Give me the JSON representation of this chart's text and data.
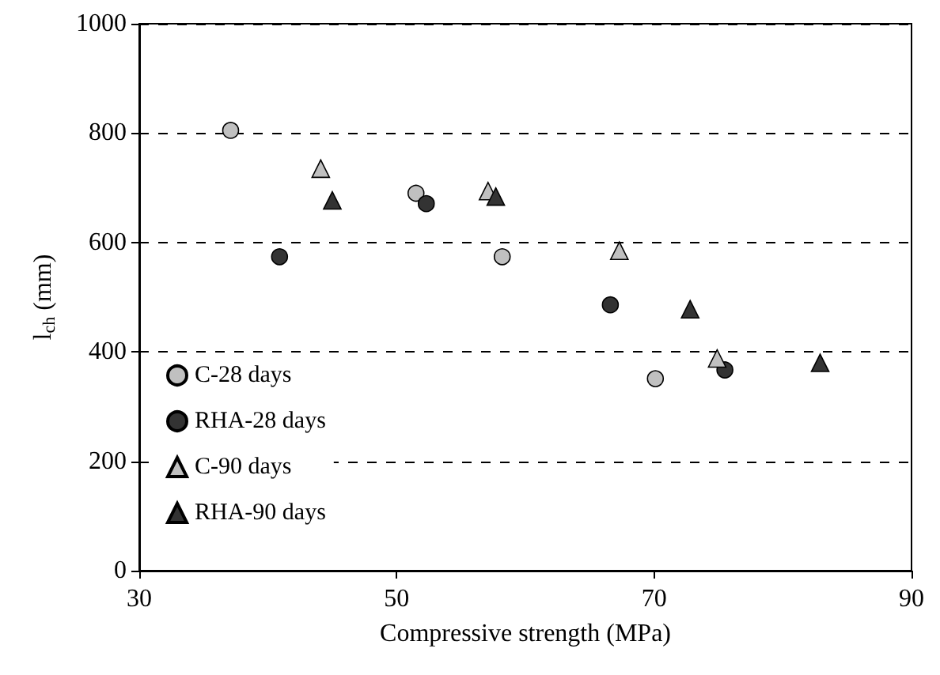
{
  "chart_data": {
    "type": "scatter",
    "xlabel": "Compressive strength (MPa)",
    "ylabel": "l$_{ch}$ (mm)",
    "xlim": [
      30,
      90
    ],
    "xticks": [
      30,
      50,
      70,
      90
    ],
    "ylim": [
      0,
      1000
    ],
    "yticks": [
      0,
      200,
      400,
      600,
      800,
      1000
    ],
    "grid": "y",
    "legend": "bottom left",
    "series": [
      {
        "name": "C-28 days",
        "color": "#c0c0c0",
        "marker": "circle",
        "x": [
          37.1,
          51.5,
          58.2,
          70.1
        ],
        "values": [
          805,
          690,
          574,
          351
        ]
      },
      {
        "name": "RHA-28 days",
        "color": "#333333",
        "marker": "circle",
        "x": [
          40.9,
          52.3,
          66.6,
          75.5
        ],
        "values": [
          574,
          671,
          486,
          367
        ]
      },
      {
        "name": "C-90 days",
        "color": "#c0c0c0",
        "marker": "triangle",
        "x": [
          44.1,
          57.1,
          67.3,
          74.9
        ],
        "values": [
          735,
          694,
          585,
          388
        ]
      },
      {
        "name": "RHA-90 days",
        "color": "#333333",
        "marker": "triangle",
        "x": [
          45.0,
          57.7,
          72.8,
          82.9
        ],
        "values": [
          677,
          684,
          478,
          380
        ]
      }
    ]
  }
}
